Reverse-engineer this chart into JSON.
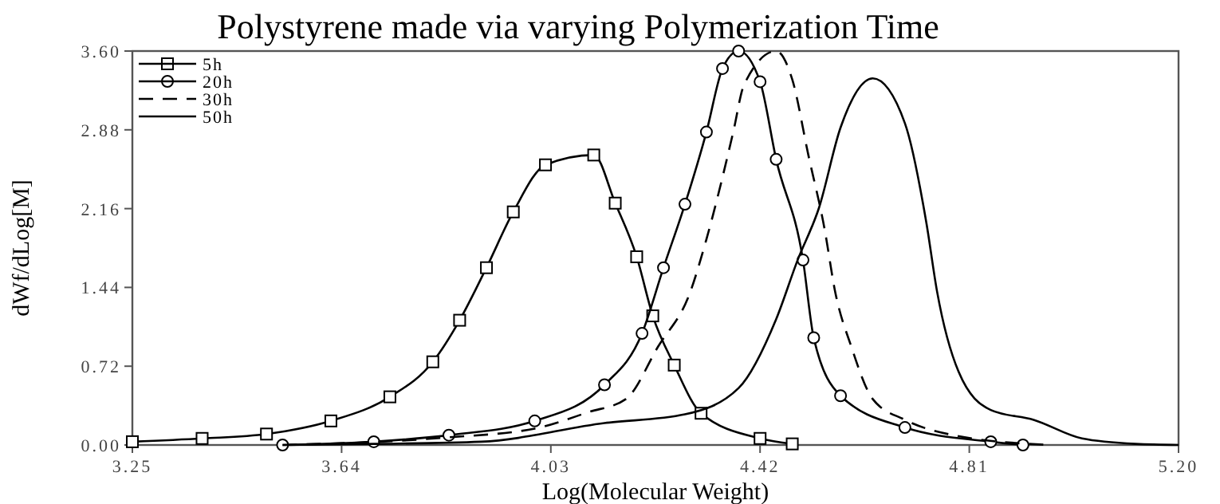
{
  "chart_data": {
    "type": "line",
    "title": "Polystyrene made via varying Polymerization Time",
    "xlabel": "Log(Molecular Weight)",
    "ylabel": "dWf/dLog[M]",
    "xlim": [
      3.25,
      5.2
    ],
    "xticks": [
      3.25,
      3.64,
      4.03,
      4.42,
      4.81,
      {
        "value": 5.2,
        "label": "5.20"
      }
    ],
    "ylim": [
      0,
      3.6
    ],
    "yticks": [
      {
        "value": 0,
        "label": "0.00"
      },
      0.72,
      1.44,
      2.16,
      2.88,
      {
        "value": 3.6,
        "label": "3.60"
      }
    ],
    "grid": false,
    "legend": "top left",
    "series": [
      {
        "name": "5h",
        "color": "#000000",
        "marker": "square",
        "line_style": "solid",
        "x": [
          3.25,
          3.38,
          3.5,
          3.62,
          3.73,
          3.81,
          3.86,
          3.91,
          3.96,
          4.02,
          4.11,
          4.15,
          4.19,
          4.22,
          4.26,
          4.31,
          4.42,
          4.48
        ],
        "values": [
          0.03,
          0.06,
          0.1,
          0.22,
          0.44,
          0.76,
          1.14,
          1.62,
          2.13,
          2.56,
          2.65,
          2.21,
          1.72,
          1.18,
          0.73,
          0.29,
          0.06,
          0.01
        ]
      },
      {
        "name": "20h",
        "color": "#000000",
        "marker": "circle",
        "line_style": "solid",
        "x": [
          3.53,
          3.7,
          3.84,
          4.0,
          4.13,
          4.2,
          4.24,
          4.28,
          4.32,
          4.35,
          4.38,
          4.42,
          4.45,
          4.5,
          4.52,
          4.57,
          4.69,
          4.85,
          4.91
        ],
        "values": [
          0,
          0.03,
          0.09,
          0.22,
          0.55,
          1.02,
          1.62,
          2.2,
          2.86,
          3.44,
          3.6,
          3.32,
          2.61,
          1.69,
          0.98,
          0.45,
          0.16,
          0.03,
          0
        ]
      },
      {
        "name": "30h",
        "color": "#000000",
        "marker": "none",
        "line_style": "dashed",
        "x": [
          3.53,
          3.84,
          4.0,
          4.1,
          4.17,
          4.23,
          4.29,
          4.32,
          4.37,
          4.39,
          4.45,
          4.48,
          4.51,
          4.54,
          4.56,
          4.59,
          4.63,
          4.69,
          4.78,
          4.96
        ],
        "values": [
          0,
          0.07,
          0.15,
          0.3,
          0.42,
          0.9,
          1.4,
          1.88,
          2.86,
          3.29,
          3.6,
          3.34,
          2.65,
          1.98,
          1.4,
          0.9,
          0.42,
          0.23,
          0.09,
          0
        ]
      },
      {
        "name": "50h",
        "color": "#000000",
        "marker": "none",
        "line_style": "solid",
        "x": [
          3.53,
          3.7,
          3.9,
          4.13,
          4.28,
          4.38,
          4.45,
          4.49,
          4.53,
          4.57,
          4.63,
          4.69,
          4.73,
          4.75,
          4.79,
          4.85,
          4.93,
          5.02,
          5.12,
          5.2
        ],
        "values": [
          0,
          0.01,
          0.03,
          0.2,
          0.28,
          0.52,
          1.15,
          1.69,
          2.17,
          2.9,
          3.35,
          2.94,
          2.03,
          1.4,
          0.67,
          0.32,
          0.23,
          0.06,
          0.01,
          0
        ]
      }
    ]
  }
}
